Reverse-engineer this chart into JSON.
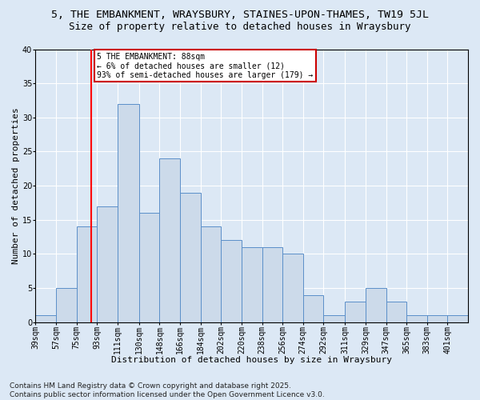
{
  "title1": "5, THE EMBANKMENT, WRAYSBURY, STAINES-UPON-THAMES, TW19 5JL",
  "title2": "Size of property relative to detached houses in Wraysbury",
  "xlabel": "Distribution of detached houses by size in Wraysbury",
  "ylabel": "Number of detached properties",
  "bin_labels": [
    "39sqm",
    "57sqm",
    "75sqm",
    "93sqm",
    "111sqm",
    "130sqm",
    "148sqm",
    "166sqm",
    "184sqm",
    "202sqm",
    "220sqm",
    "238sqm",
    "256sqm",
    "274sqm",
    "292sqm",
    "311sqm",
    "329sqm",
    "347sqm",
    "365sqm",
    "383sqm",
    "401sqm"
  ],
  "bin_edges": [
    39,
    57,
    75,
    93,
    111,
    130,
    148,
    166,
    184,
    202,
    220,
    238,
    256,
    274,
    292,
    311,
    329,
    347,
    365,
    383,
    401
  ],
  "values": [
    1,
    5,
    14,
    17,
    32,
    16,
    24,
    19,
    14,
    12,
    11,
    11,
    10,
    4,
    1,
    3,
    5,
    3,
    1,
    1,
    1
  ],
  "bar_color": "#ccdaea",
  "bar_edge_color": "#5b8fc9",
  "red_line_x": 88,
  "annotation_text": "5 THE EMBANKMENT: 88sqm\n← 6% of detached houses are smaller (12)\n93% of semi-detached houses are larger (179) →",
  "annotation_box_color": "#ffffff",
  "annotation_box_edge": "#cc0000",
  "bg_color": "#dce8f5",
  "plot_bg_color": "#dce8f5",
  "ylim": [
    0,
    40
  ],
  "yticks": [
    0,
    5,
    10,
    15,
    20,
    25,
    30,
    35,
    40
  ],
  "footer": "Contains HM Land Registry data © Crown copyright and database right 2025.\nContains public sector information licensed under the Open Government Licence v3.0.",
  "title1_fontsize": 9.5,
  "title2_fontsize": 9,
  "xlabel_fontsize": 8,
  "ylabel_fontsize": 8,
  "tick_fontsize": 7,
  "annotation_fontsize": 7,
  "footer_fontsize": 6.5
}
